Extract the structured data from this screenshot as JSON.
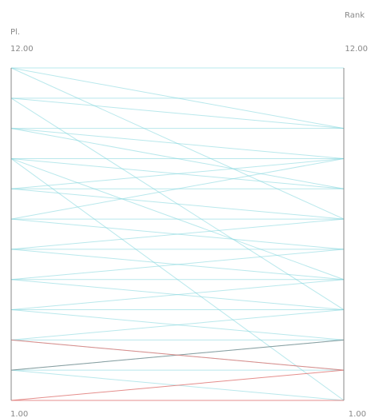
{
  "chart_data": {
    "type": "parallel-coordinates",
    "axes": [
      {
        "name": "Pl.",
        "range": [
          1,
          12
        ],
        "max_label": "12.00",
        "min_label": "1.00"
      },
      {
        "name": "Rank",
        "range": [
          1,
          12
        ],
        "max_label": "12.00",
        "min_label": "1.00"
      }
    ],
    "grid": false,
    "colors": {
      "default": "#7fd6dc",
      "highlight": "#e07a78",
      "dark": "#7c8a8c",
      "axis": "#888888",
      "text": "#888888"
    },
    "lines": [
      {
        "pl": 12,
        "rank": 12,
        "color": "default"
      },
      {
        "pl": 12,
        "rank": 10,
        "color": "default"
      },
      {
        "pl": 12,
        "rank": 7,
        "color": "default"
      },
      {
        "pl": 11,
        "rank": 11,
        "color": "default"
      },
      {
        "pl": 11,
        "rank": 10,
        "color": "default"
      },
      {
        "pl": 11,
        "rank": 4,
        "color": "default"
      },
      {
        "pl": 10,
        "rank": 10,
        "color": "default"
      },
      {
        "pl": 10,
        "rank": 9,
        "color": "default"
      },
      {
        "pl": 10,
        "rank": 8,
        "color": "default"
      },
      {
        "pl": 9,
        "rank": 9,
        "color": "default"
      },
      {
        "pl": 9,
        "rank": 8,
        "color": "default"
      },
      {
        "pl": 9,
        "rank": 5,
        "color": "default"
      },
      {
        "pl": 9,
        "rank": 1,
        "color": "default"
      },
      {
        "pl": 8,
        "rank": 8,
        "color": "default"
      },
      {
        "pl": 8,
        "rank": 9,
        "color": "default"
      },
      {
        "pl": 8,
        "rank": 7,
        "color": "default"
      },
      {
        "pl": 7,
        "rank": 9,
        "color": "default"
      },
      {
        "pl": 7,
        "rank": 7,
        "color": "default"
      },
      {
        "pl": 7,
        "rank": 6,
        "color": "default"
      },
      {
        "pl": 6,
        "rank": 6,
        "color": "default"
      },
      {
        "pl": 6,
        "rank": 7,
        "color": "default"
      },
      {
        "pl": 6,
        "rank": 5,
        "color": "default"
      },
      {
        "pl": 5,
        "rank": 5,
        "color": "default"
      },
      {
        "pl": 5,
        "rank": 6,
        "color": "default"
      },
      {
        "pl": 5,
        "rank": 4,
        "color": "default"
      },
      {
        "pl": 4,
        "rank": 4,
        "color": "default"
      },
      {
        "pl": 4,
        "rank": 5,
        "color": "default"
      },
      {
        "pl": 4,
        "rank": 3,
        "color": "default"
      },
      {
        "pl": 3,
        "rank": 3,
        "color": "default"
      },
      {
        "pl": 3,
        "rank": 4,
        "color": "default"
      },
      {
        "pl": 3,
        "rank": 2,
        "color": "default"
      },
      {
        "pl": 2,
        "rank": 2,
        "color": "default"
      },
      {
        "pl": 2,
        "rank": 3,
        "color": "default"
      },
      {
        "pl": 2,
        "rank": 1,
        "color": "default"
      },
      {
        "pl": 1,
        "rank": 1,
        "color": "highlight"
      },
      {
        "pl": 1,
        "rank": 2,
        "color": "highlight"
      },
      {
        "pl": 2,
        "rank": 3,
        "color": "dark"
      },
      {
        "pl": 3,
        "rank": 2,
        "color": "highlight"
      }
    ]
  }
}
